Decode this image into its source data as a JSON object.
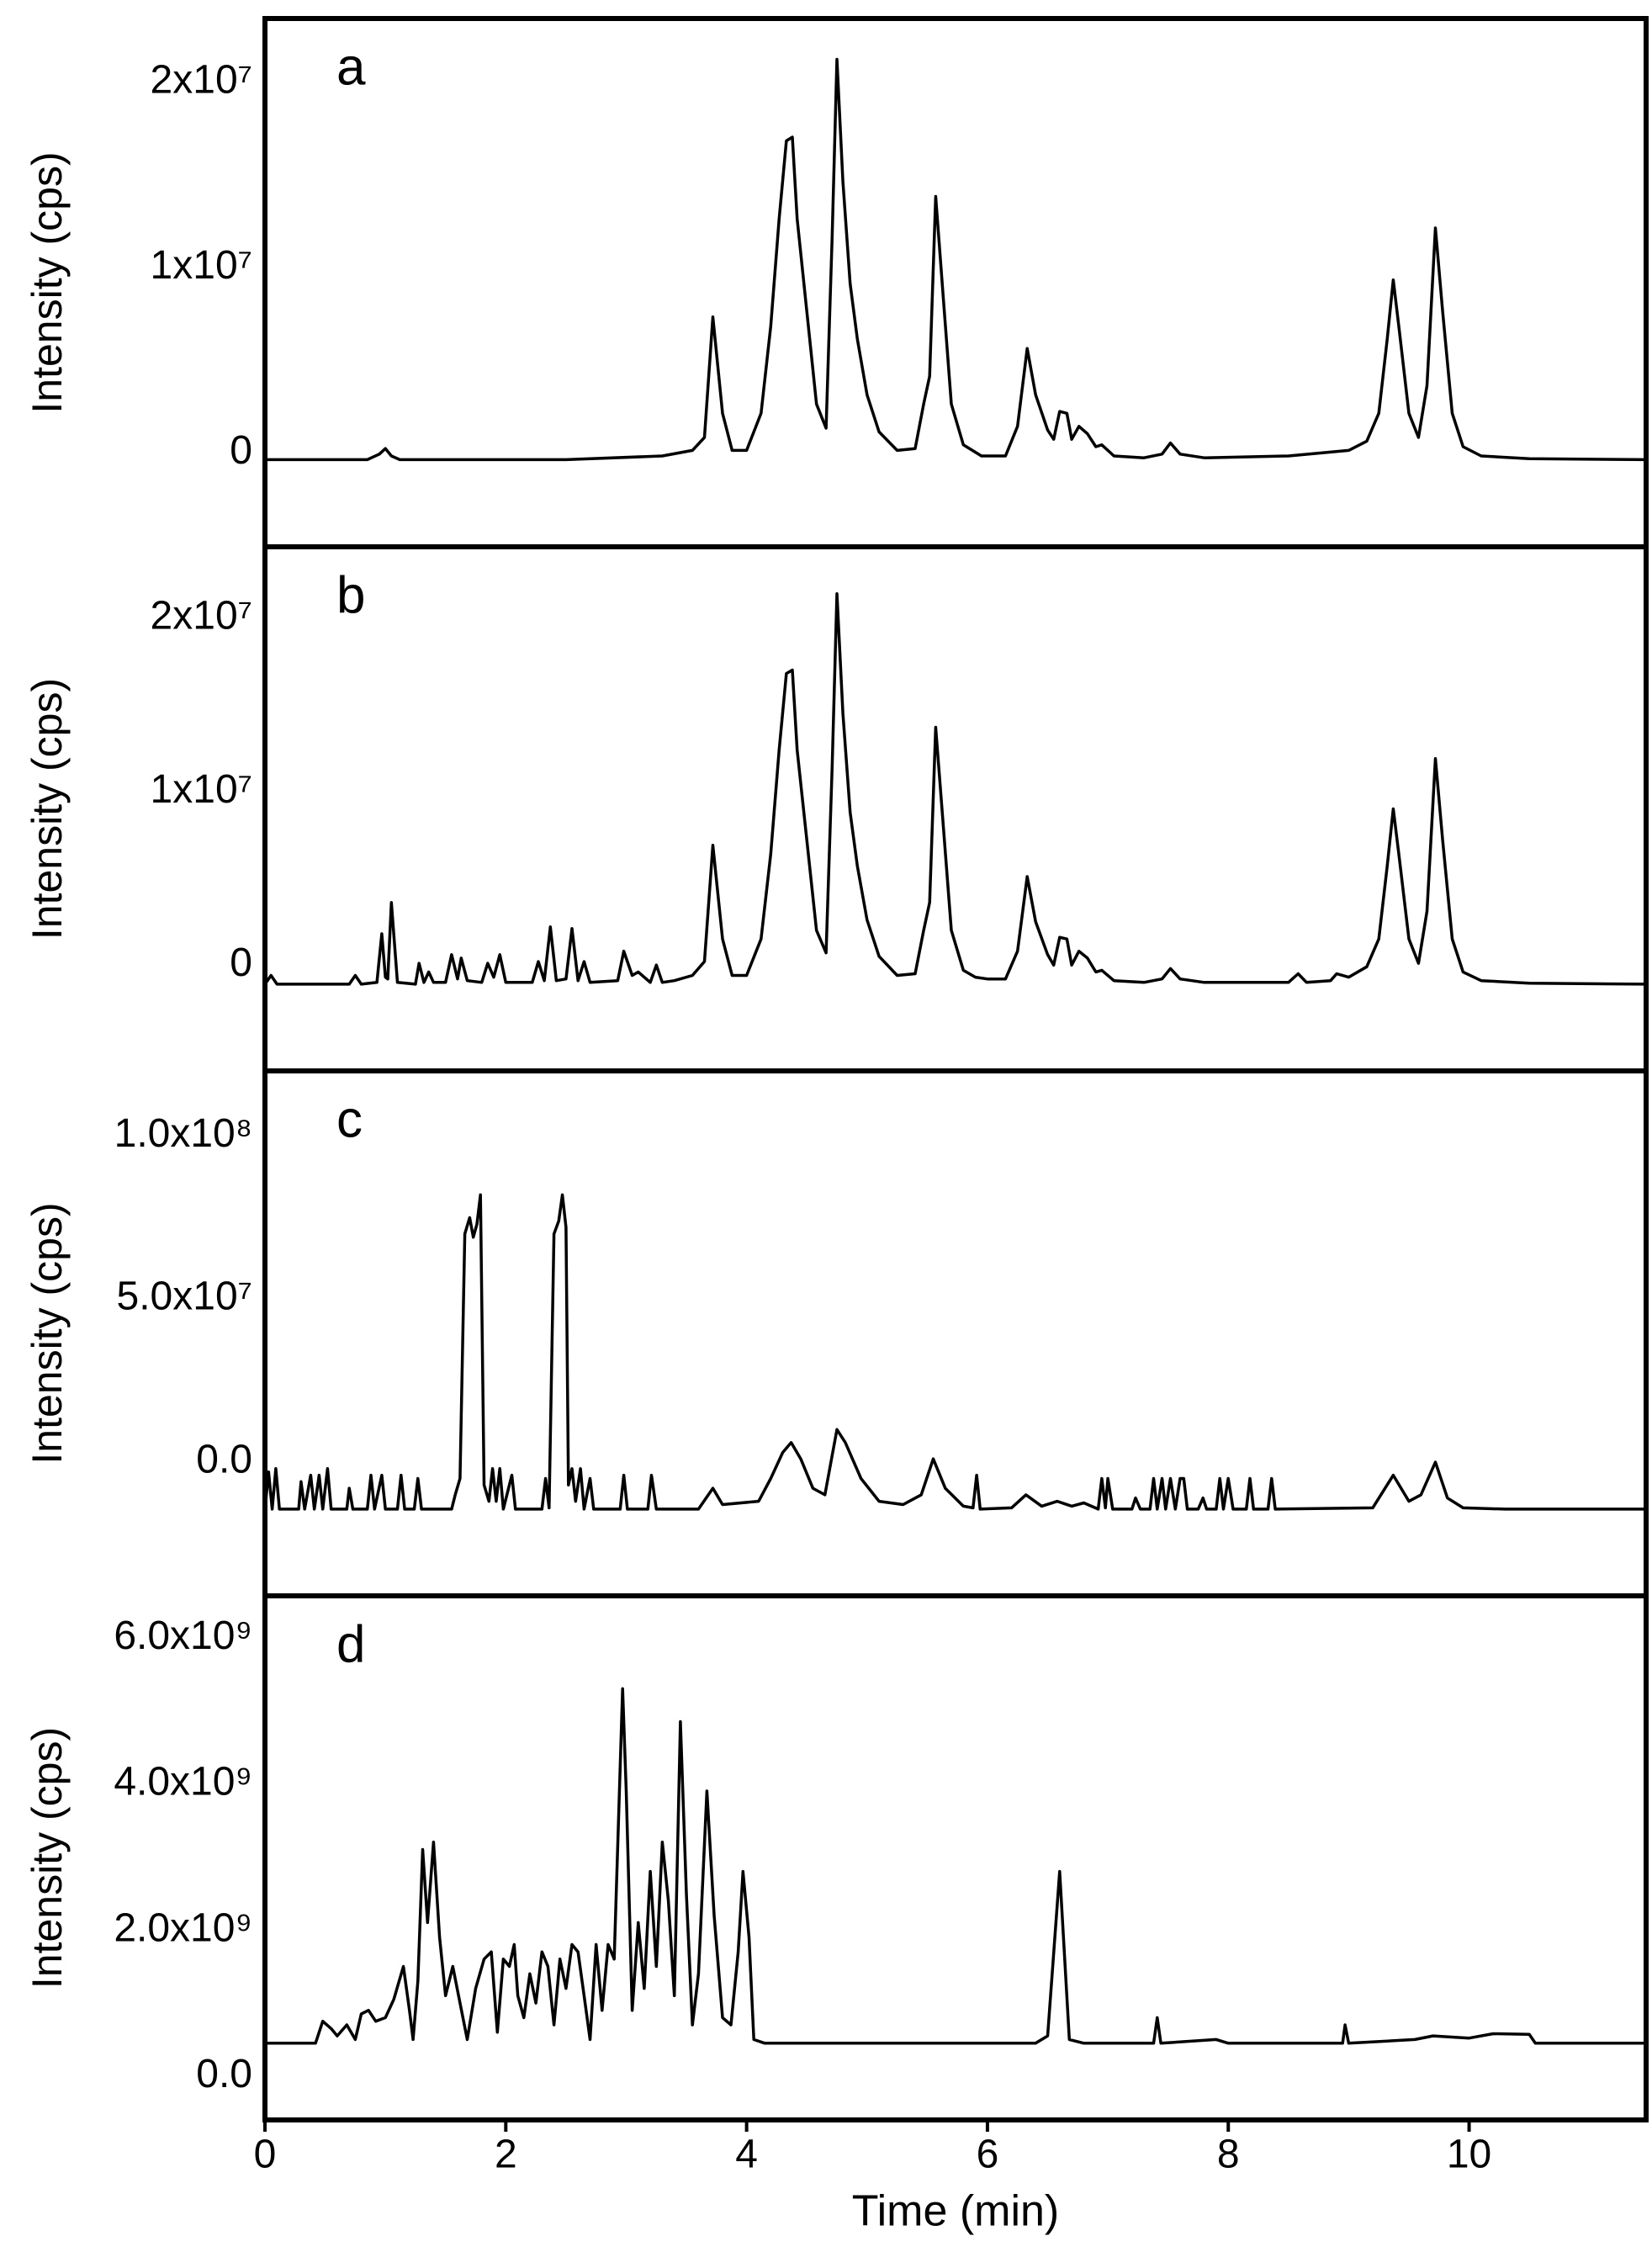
{
  "chart_data": [
    {
      "type": "line",
      "panel_label": "a",
      "ylabel": "Intensity (cps)",
      "xlim": [
        0,
        11.47
      ],
      "ylim": [
        -4700000.0,
        23800000.0
      ],
      "yticks": [
        0,
        {
          "value": 10000000.0,
          "label": "1x10⁷"
        },
        {
          "value": 20000000.0,
          "label": "2x10⁷"
        }
      ],
      "color": "#000000",
      "x": [
        0,
        0.85,
        0.95,
        1.0,
        1.05,
        1.12,
        1.3,
        2.5,
        3.3,
        3.55,
        3.65,
        3.72,
        3.8,
        3.88,
        4.0,
        4.12,
        4.2,
        4.27,
        4.33,
        4.38,
        4.42,
        4.5,
        4.58,
        4.66,
        4.71,
        4.75,
        4.8,
        4.86,
        4.92,
        5.0,
        5.1,
        5.25,
        5.4,
        5.47,
        5.52,
        5.57,
        5.63,
        5.7,
        5.8,
        5.95,
        6.15,
        6.25,
        6.33,
        6.4,
        6.5,
        6.55,
        6.6,
        6.66,
        6.7,
        6.76,
        6.83,
        6.9,
        6.95,
        7.05,
        7.3,
        7.45,
        7.52,
        7.6,
        7.8,
        8.5,
        9.0,
        9.15,
        9.25,
        9.32,
        9.37,
        9.42,
        9.5,
        9.58,
        9.65,
        9.72,
        9.78,
        9.86,
        9.95,
        10.1,
        10.5,
        11.47
      ],
      "values": [
        0,
        0,
        300000.0,
        600000.0,
        200000.0,
        0,
        0,
        0,
        200000.0,
        500000.0,
        1200000.0,
        7700000.0,
        2500000.0,
        500000.0,
        500000.0,
        2500000.0,
        7200000.0,
        13000000.0,
        17200000.0,
        17400000.0,
        13000000.0,
        8000000.0,
        3000000.0,
        1700000.0,
        12000000.0,
        21600000.0,
        15000000.0,
        9500000.0,
        6500000.0,
        3500000.0,
        1500000.0,
        500000.0,
        600000.0,
        3000000.0,
        4500000.0,
        14200000.0,
        9000000.0,
        3000000.0,
        800000.0,
        200000.0,
        200000.0,
        1800000.0,
        6000000.0,
        3500000.0,
        1600000.0,
        1100000.0,
        2600000.0,
        2500000.0,
        1100000.0,
        1800000.0,
        1400000.0,
        700000.0,
        800000.0,
        200000.0,
        100000.0,
        300000.0,
        900000.0,
        300000.0,
        100000.0,
        200000.0,
        500000.0,
        1000000.0,
        2500000.0,
        6500000.0,
        9700000.0,
        7000000.0,
        2500000.0,
        1200000.0,
        4000000.0,
        12500000.0,
        8000000.0,
        2500000.0,
        700000.0,
        200000.0,
        50000.0,
        0
      ]
    },
    {
      "type": "line",
      "panel_label": "b",
      "ylabel": "Intensity (cps)",
      "xlim": [
        0,
        11.47
      ],
      "ylim": [
        -5700000.0,
        24500000.0
      ],
      "yticks": [
        0,
        {
          "value": 10000000.0,
          "label": "1x10⁷"
        },
        {
          "value": 20000000.0,
          "label": "2x10⁷"
        }
      ],
      "color": "#000000",
      "x": [
        0,
        0.05,
        0.1,
        0.7,
        0.75,
        0.8,
        0.93,
        0.97,
        1.0,
        1.02,
        1.05,
        1.1,
        1.25,
        1.28,
        1.32,
        1.36,
        1.4,
        1.5,
        1.55,
        1.6,
        1.63,
        1.68,
        1.8,
        1.85,
        1.9,
        1.95,
        2.0,
        2.22,
        2.27,
        2.32,
        2.37,
        2.42,
        2.5,
        2.55,
        2.6,
        2.65,
        2.7,
        2.93,
        2.98,
        3.05,
        3.1,
        3.2,
        3.25,
        3.3,
        3.4,
        3.55,
        3.65,
        3.72,
        3.8,
        3.88,
        4.0,
        4.12,
        4.2,
        4.27,
        4.33,
        4.38,
        4.42,
        4.5,
        4.58,
        4.66,
        4.71,
        4.75,
        4.8,
        4.86,
        4.92,
        5.0,
        5.1,
        5.25,
        5.4,
        5.47,
        5.52,
        5.57,
        5.63,
        5.7,
        5.8,
        5.9,
        6.0,
        6.15,
        6.25,
        6.33,
        6.4,
        6.5,
        6.55,
        6.6,
        6.66,
        6.7,
        6.76,
        6.83,
        6.9,
        6.95,
        7.05,
        7.3,
        7.45,
        7.52,
        7.6,
        7.8,
        8.5,
        8.58,
        8.65,
        8.85,
        8.9,
        9.0,
        9.15,
        9.25,
        9.32,
        9.37,
        9.42,
        9.5,
        9.58,
        9.65,
        9.72,
        9.78,
        9.86,
        9.95,
        10.1,
        10.5,
        11.47
      ],
      "values": [
        -700000.0,
        -200000.0,
        -700000.0,
        -700000.0,
        -200000.0,
        -700000.0,
        -600000.0,
        2200000.0,
        -300000.0,
        -400000.0,
        4000000.0,
        -600000.0,
        -700000.0,
        500000.0,
        -600000.0,
        0.0,
        -600000.0,
        -600000.0,
        1000000.0,
        -400000.0,
        800000.0,
        -500000.0,
        -600000.0,
        500000.0,
        -300000.0,
        1000000.0,
        -600000.0,
        -600000.0,
        600000.0,
        -500000.0,
        2600000.0,
        -500000.0,
        -400000.0,
        2500000.0,
        -500000.0,
        600000.0,
        -600000.0,
        -500000.0,
        1200000.0,
        -200000.0,
        0.0,
        -600000.0,
        400000.0,
        -600000.0,
        -500000.0,
        -200000.0,
        600000.0,
        7300000.0,
        1900000.0,
        -200000.0,
        -200000.0,
        1900000.0,
        6800000.0,
        12800000.0,
        17200000.0,
        17400000.0,
        12800000.0,
        7600000.0,
        2400000.0,
        1100000.0,
        11800000.0,
        21800000.0,
        14900000.0,
        9200000.0,
        6100000.0,
        3000000.0,
        900000.0,
        -200000.0,
        -100000.0,
        2400000.0,
        4000000.0,
        14100000.0,
        8700000.0,
        2400000.0,
        100000.0,
        -300000.0,
        -400000.0,
        -400000.0,
        1200000.0,
        5500000.0,
        2900000.0,
        1000000.0,
        400000.0,
        2000000.0,
        1900000.0,
        400000.0,
        1200000.0,
        800000.0,
        0.0,
        100000.0,
        -500000.0,
        -600000.0,
        -400000.0,
        200000.0,
        -400000.0,
        -600000.0,
        -600000.0,
        -100000.0,
        -600000.0,
        -500000.0,
        -100000.0,
        -300000.0,
        300000.0,
        1900000.0,
        6100000.0,
        9400000.0,
        6600000.0,
        1900000.0,
        500000.0,
        3500000.0,
        12300000.0,
        7600000.0,
        1900000.0,
        0.0,
        -500000.0,
        -650000.0,
        -700000.0
      ]
    },
    {
      "type": "line",
      "panel_label": "c",
      "ylabel": "Intensity (cps)",
      "xlim": [
        0,
        11.47
      ],
      "ylim": [
        -39000000.0,
        122000000.0
      ],
      "yticks": [
        {
          "value": 0,
          "label": "0.0"
        },
        {
          "value": 50000000.0,
          "label": "5.0x10⁷"
        },
        {
          "value": 100000000.0,
          "label": "1.0x10⁸"
        }
      ],
      "color": "#000000",
      "x": [
        0,
        0.03,
        0.06,
        0.09,
        0.12,
        0.28,
        0.3,
        0.33,
        0.38,
        0.41,
        0.45,
        0.48,
        0.52,
        0.55,
        0.68,
        0.7,
        0.73,
        0.85,
        0.88,
        0.91,
        0.97,
        1.0,
        1.1,
        1.13,
        1.16,
        1.24,
        1.27,
        1.3,
        1.55,
        1.58,
        1.62,
        1.66,
        1.7,
        1.73,
        1.76,
        1.79,
        1.82,
        1.86,
        1.89,
        1.92,
        1.95,
        1.98,
        2.05,
        2.08,
        2.3,
        2.33,
        2.36,
        2.4,
        2.44,
        2.47,
        2.5,
        2.52,
        2.55,
        2.58,
        2.62,
        2.65,
        2.7,
        2.73,
        2.95,
        2.98,
        3.01,
        3.18,
        3.21,
        3.25,
        3.6,
        3.72,
        3.8,
        4.1,
        4.2,
        4.3,
        4.37,
        4.45,
        4.55,
        4.65,
        4.75,
        4.82,
        4.95,
        5.1,
        5.3,
        5.45,
        5.55,
        5.65,
        5.8,
        5.88,
        5.91,
        5.94,
        6.2,
        6.32,
        6.45,
        6.58,
        6.7,
        6.8,
        6.92,
        6.95,
        6.98,
        7.0,
        7.04,
        7.2,
        7.23,
        7.27,
        7.35,
        7.38,
        7.41,
        7.45,
        7.48,
        7.52,
        7.56,
        7.6,
        7.63,
        7.66,
        7.75,
        7.79,
        7.82,
        7.9,
        7.93,
        7.96,
        8.0,
        8.04,
        8.15,
        8.18,
        8.21,
        8.33,
        8.36,
        8.39,
        9.2,
        9.37,
        9.5,
        9.6,
        9.72,
        9.82,
        9.95,
        10.3,
        11.47
      ],
      "values": [
        -12400000.0,
        -1000000.0,
        -12400000.0,
        0.0,
        -12400000.0,
        -12400000.0,
        -4000000.0,
        -12400000.0,
        -2000000.0,
        -12400000.0,
        -2000000.0,
        -12400000.0,
        0.0,
        -12400000.0,
        -12400000.0,
        -6000000.0,
        -12400000.0,
        -12400000.0,
        -2000000.0,
        -12400000.0,
        -2000000.0,
        -12400000.0,
        -12400000.0,
        -2000000.0,
        -12400000.0,
        -12400000.0,
        -3000000.0,
        -12400000.0,
        -12400000.0,
        -8000000.0,
        -3000000.0,
        72000000.0,
        77000000.0,
        71000000.0,
        75000000.0,
        84000000.0,
        -5000000.0,
        -10000000.0,
        0.0,
        -10000000.0,
        0.0,
        -12400000.0,
        -2000000.0,
        -12400000.0,
        -12400000.0,
        -3000000.0,
        -12000000.0,
        72000000.0,
        76000000.0,
        84000000.0,
        74000000.0,
        -5000000.0,
        0.0,
        -10000000.0,
        0.0,
        -12400000.0,
        -3000000.0,
        -12400000.0,
        -12400000.0,
        -2000000.0,
        -12400000.0,
        -12400000.0,
        -2000000.0,
        -12400000.0,
        -12400000.0,
        -6000000.0,
        -11000000.0,
        -10000000.0,
        -3000000.0,
        5000000.0,
        8000000.0,
        3000000.0,
        -6000000.0,
        -8000000.0,
        12000000.0,
        8000000.0,
        -3000000.0,
        -10000000.0,
        -11000000.0,
        -8000000.0,
        3000000.0,
        -6000000.0,
        -11500000.0,
        -12000000.0,
        -2000000.0,
        -12400000.0,
        -12000000.0,
        -8000000.0,
        -11500000.0,
        -10000000.0,
        -11500000.0,
        -10500000.0,
        -12400000.0,
        -3000000.0,
        -12000000.0,
        -3000000.0,
        -12400000.0,
        -12400000.0,
        -9000000.0,
        -12400000.0,
        -12400000.0,
        -3000000.0,
        -12400000.0,
        -3000000.0,
        -12400000.0,
        -3000000.0,
        -12400000.0,
        -3000000.0,
        -3000000.0,
        -12400000.0,
        -12400000.0,
        -9000000.0,
        -12400000.0,
        -12400000.0,
        -3000000.0,
        -12400000.0,
        -3000000.0,
        -12400000.0,
        -12400000.0,
        -3000000.0,
        -12400000.0,
        -12400000.0,
        -3000000.0,
        -12400000.0,
        -12000000.0,
        -2000000.0,
        -10000000.0,
        -8000000.0,
        2000000.0,
        -9000000.0,
        -12000000.0,
        -12400000.0,
        -12400000.0
      ]
    },
    {
      "type": "line",
      "panel_label": "d",
      "ylabel": "Intensity (cps)",
      "xlabel": "Time (min)",
      "xlim": [
        0,
        11.47
      ],
      "ylim": [
        -500000000.0,
        6670000000.0
      ],
      "xticks": [
        0,
        2,
        4,
        6,
        8,
        10
      ],
      "yticks": [
        {
          "value": 0,
          "label": "0.0"
        },
        {
          "value": 2000000000.0,
          "label": "2.0x10⁹"
        },
        {
          "value": 4000000000.0,
          "label": "4.0x10⁹"
        },
        {
          "value": 6000000000.0,
          "label": "6.0x10⁹"
        }
      ],
      "color": "#000000",
      "x": [
        0,
        0.42,
        0.48,
        0.55,
        0.6,
        0.68,
        0.75,
        0.8,
        0.86,
        0.92,
        1.0,
        1.07,
        1.15,
        1.2,
        1.23,
        1.27,
        1.31,
        1.35,
        1.4,
        1.45,
        1.5,
        1.56,
        1.62,
        1.68,
        1.75,
        1.82,
        1.88,
        1.93,
        1.98,
        2.03,
        2.07,
        2.1,
        2.15,
        2.2,
        2.25,
        2.3,
        2.35,
        2.4,
        2.45,
        2.5,
        2.55,
        2.6,
        2.65,
        2.7,
        2.75,
        2.8,
        2.85,
        2.9,
        2.97,
        3.0,
        3.05,
        3.1,
        3.15,
        3.2,
        3.25,
        3.3,
        3.35,
        3.4,
        3.45,
        3.5,
        3.55,
        3.6,
        3.67,
        3.73,
        3.8,
        3.87,
        3.93,
        3.97,
        4.02,
        4.06,
        4.15,
        6.4,
        6.5,
        6.6,
        6.68,
        6.8,
        7.38,
        7.41,
        7.44,
        7.9,
        8.0,
        8.95,
        8.97,
        9.0,
        9.55,
        9.7,
        10.0,
        10.2,
        10.5,
        10.55,
        11.47
      ],
      "values": [
        550000000.0,
        550000000.0,
        850000000.0,
        750000000.0,
        650000000.0,
        800000000.0,
        600000000.0,
        950000000.0,
        1000000000.0,
        850000000.0,
        900000000.0,
        1150000000.0,
        1600000000.0,
        1000000000.0,
        600000000.0,
        1400000000.0,
        3200000000.0,
        2200000000.0,
        3300000000.0,
        2000000000.0,
        1200000000.0,
        1600000000.0,
        1100000000.0,
        600000000.0,
        1300000000.0,
        1700000000.0,
        1800000000.0,
        700000000.0,
        1700000000.0,
        1600000000.0,
        1900000000.0,
        1200000000.0,
        900000000.0,
        1500000000.0,
        1100000000.0,
        1800000000.0,
        1600000000.0,
        800000000.0,
        1700000000.0,
        1300000000.0,
        1900000000.0,
        1800000000.0,
        1200000000.0,
        600000000.0,
        1900000000.0,
        1000000000.0,
        1900000000.0,
        1700000000.0,
        5400000000.0,
        4000000000.0,
        1000000000.0,
        2200000000.0,
        1300000000.0,
        2900000000.0,
        1600000000.0,
        3300000000.0,
        2500000000.0,
        1200000000.0,
        4950000000.0,
        2600000000.0,
        800000000.0,
        1500000000.0,
        4000000000.0,
        2300000000.0,
        900000000.0,
        800000000.0,
        1800000000.0,
        2900000000.0,
        2000000000.0,
        600000000.0,
        550000000.0,
        550000000.0,
        650000000.0,
        2900000000.0,
        600000000.0,
        550000000.0,
        550000000.0,
        900000000.0,
        550000000.0,
        600000000.0,
        550000000.0,
        550000000.0,
        800000000.0,
        550000000.0,
        600000000.0,
        650000000.0,
        620000000.0,
        680000000.0,
        670000000.0,
        550000000.0,
        550000000.0
      ]
    }
  ]
}
